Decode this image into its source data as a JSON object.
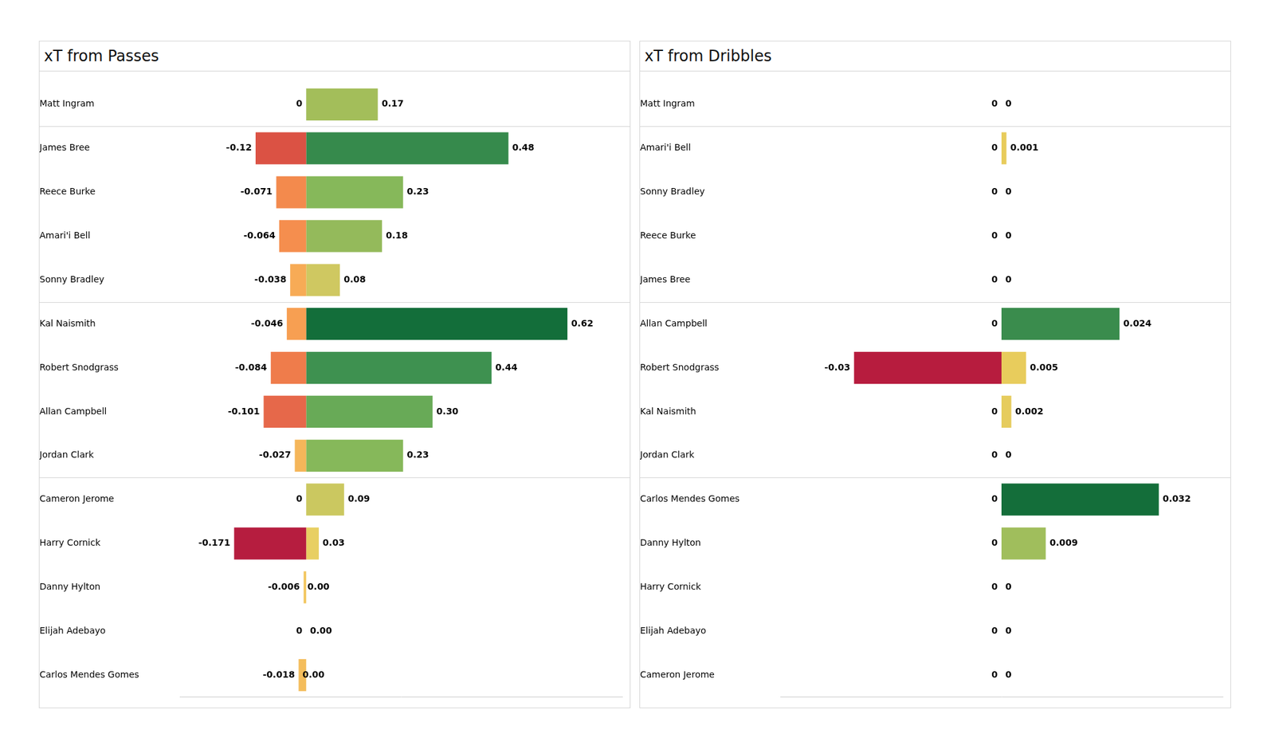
{
  "chart_data": [
    {
      "type": "bar",
      "title": "xT from Passes",
      "orientation": "horizontal",
      "stacked": true,
      "data_labels": true,
      "tick_labels": "y",
      "grid": false,
      "categories": [
        "Matt Ingram",
        "James Bree",
        "Reece Burke",
        "Amari'i Bell",
        "Sonny Bradley",
        "Kal Naismith",
        "Robert Snodgrass",
        "Allan Campbell",
        "Jordan Clark",
        "Cameron Jerome",
        "Harry Cornick",
        "Danny Hylton",
        "Elijah Adebayo",
        "Carlos Mendes Gomes"
      ],
      "xlim": [
        -0.3,
        0.75
      ],
      "series": [
        {
          "values": [
            0,
            -0.12,
            -0.071,
            -0.064,
            -0.038,
            -0.046,
            -0.084,
            -0.101,
            -0.027,
            0,
            -0.171,
            -0.006,
            0,
            -0.018
          ],
          "value_labels": [
            "0",
            "-0.12",
            "-0.071",
            "-0.064",
            "-0.038",
            "-0.046",
            "-0.084",
            "-0.101",
            "-0.027",
            "0",
            "-0.171",
            "-0.006",
            "0",
            "-0.018"
          ],
          "colors": [
            "#f2c65e",
            "#db5244",
            "#f38a4d",
            "#f58e4e",
            "#f7ab56",
            "#f79f52",
            "#ef7c4b",
            "#e6684a",
            "#f5b65a",
            "#f2c65e",
            "#b61d3f",
            "#f2c65e",
            "#f2c65e",
            "#f4bd5c"
          ]
        },
        {
          "values": [
            0.17,
            0.48,
            0.23,
            0.18,
            0.08,
            0.62,
            0.44,
            0.3,
            0.23,
            0.09,
            0.03,
            0,
            0,
            0
          ],
          "value_labels": [
            "0.17",
            "0.48",
            "0.23",
            "0.18",
            "0.08",
            "0.62",
            "0.44",
            "0.30",
            "0.23",
            "0.09",
            "0.03",
            "0.00",
            "0.00",
            "0.00"
          ],
          "colors": [
            "#a3be5a",
            "#368a4c",
            "#86b85a",
            "#94ba5b",
            "#cfc861",
            "#136e3a",
            "#3e9150",
            "#68aa57",
            "#86b85a",
            "#cbc860",
            "#e8cf62",
            "#f0d060",
            "#f0d060",
            "#f0d060"
          ]
        }
      ]
    },
    {
      "type": "bar",
      "title": "xT from Dribbles",
      "orientation": "horizontal",
      "stacked": true,
      "data_labels": true,
      "tick_labels": "y",
      "grid": false,
      "categories": [
        "Matt Ingram",
        "Amari'i Bell",
        "Sonny Bradley",
        "Reece Burke",
        "James Bree",
        "Allan Campbell",
        "Robert Snodgrass",
        "Kal Naismith",
        "Jordan Clark",
        "Carlos Mendes Gomes",
        "Danny Hylton",
        "Harry Cornick",
        "Elijah Adebayo",
        "Cameron Jerome"
      ],
      "xlim": [
        -0.045,
        0.045
      ],
      "series": [
        {
          "values": [
            0,
            0,
            0,
            0,
            0,
            0,
            -0.03,
            0,
            0,
            0,
            0,
            0,
            0,
            0
          ],
          "value_labels": [
            "0",
            "0",
            "0",
            "0",
            "0",
            "0",
            "-0.03",
            "0",
            "0",
            "0",
            "0",
            "0",
            "0",
            "0"
          ],
          "colors": [
            "#f2c65e",
            "#f2c65e",
            "#f2c65e",
            "#f2c65e",
            "#f2c65e",
            "#f2c65e",
            "#b71c3e",
            "#f2c65e",
            "#f2c65e",
            "#f2c65e",
            "#f2c65e",
            "#f2c65e",
            "#f2c65e",
            "#f2c65e"
          ]
        },
        {
          "values": [
            0,
            0.001,
            0,
            0,
            0,
            0.024,
            0.005,
            0.002,
            0,
            0.032,
            0.009,
            0,
            0,
            0
          ],
          "value_labels": [
            "0",
            "0.001",
            "0",
            "0",
            "0",
            "0.024",
            "0.005",
            "0.002",
            "0",
            "0.032",
            "0.009",
            "0",
            "0",
            "0"
          ],
          "colors": [
            "#e8cc5c",
            "#e8cc5c",
            "#e8cc5c",
            "#e8cc5c",
            "#e8cc5c",
            "#3a8c4d",
            "#e8cc5c",
            "#e6cc5e",
            "#e8cc5c",
            "#146e3a",
            "#a0be5c",
            "#e8cc5c",
            "#e8cc5c",
            "#e8cc5c"
          ]
        }
      ]
    }
  ]
}
